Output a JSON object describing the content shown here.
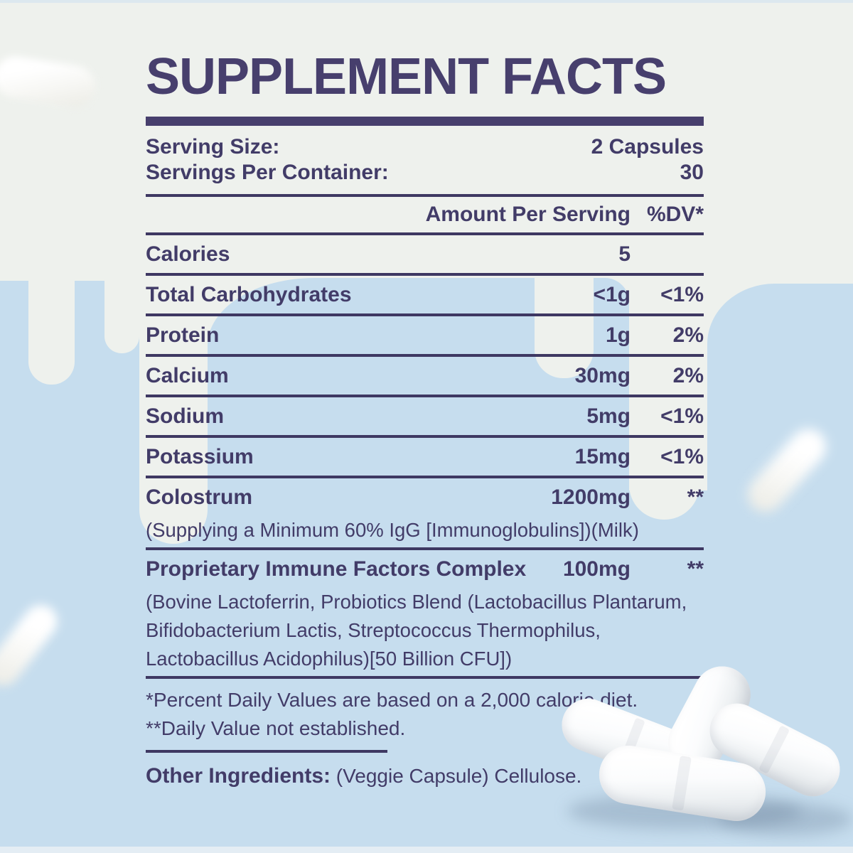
{
  "colors": {
    "accent_purple": "#473f6d",
    "rule_purple": "#3e3862",
    "bg_offwhite": "#eef1ed",
    "bg_blue": "#c6ddee"
  },
  "panel": {
    "title": "SUPPLEMENT FACTS",
    "serving": [
      {
        "label": "Serving Size:",
        "value": "2 Capsules"
      },
      {
        "label": "Servings Per Container:",
        "value": "30"
      }
    ],
    "columns": {
      "amount": "Amount Per Serving",
      "dv": "%DV*"
    },
    "rows": [
      {
        "label": "Calories",
        "amount": "5",
        "dv": "",
        "sub": ""
      },
      {
        "label": "Total Carbohydrates",
        "amount": "<1g",
        "dv": "<1%",
        "sub": ""
      },
      {
        "label": "Protein",
        "amount": "1g",
        "dv": "2%",
        "sub": ""
      },
      {
        "label": "Calcium",
        "amount": "30mg",
        "dv": "2%",
        "sub": ""
      },
      {
        "label": "Sodium",
        "amount": "5mg",
        "dv": "<1%",
        "sub": ""
      },
      {
        "label": "Potassium",
        "amount": "15mg",
        "dv": "<1%",
        "sub": ""
      },
      {
        "label": "Colostrum",
        "amount": "1200mg",
        "dv": "**",
        "sub": "(Supplying a Minimum 60% IgG [Immunoglobulins])(Milk)"
      },
      {
        "label": "Proprietary Immune Factors Complex",
        "amount": "100mg",
        "dv": "**",
        "sub": "(Bovine Lactoferrin, Probiotics Blend (Lactobacillus Plantarum, Bifidobacterium Lactis, Streptococcus Thermophilus, Lactobacillus Acidophilus)[50 Billion CFU])"
      }
    ],
    "footnotes": {
      "line1": "*Percent Daily Values are based on a 2,000 calorie diet.",
      "line2": "**Daily Value not established."
    },
    "other_ingredients": {
      "label": "Other Ingredients:",
      "text": " (Veggie Capsule) Cellulose."
    }
  },
  "decorations": {
    "capsules": [
      "blurred-capsule-top-left",
      "blurred-capsule-left",
      "blurred-capsule-right",
      "glossy-capsule-pile"
    ]
  }
}
